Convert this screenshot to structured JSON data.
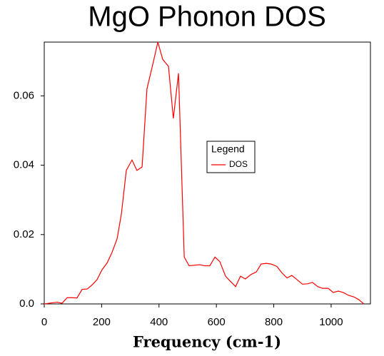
{
  "chart_data": {
    "type": "line",
    "title": "MgO Phonon DOS",
    "xlabel": "Frequency (cm-1)",
    "x": [
      0,
      25,
      45,
      62,
      80,
      97,
      114,
      132,
      150,
      167,
      184,
      201,
      219,
      236,
      254,
      269,
      286,
      306,
      323,
      341,
      358,
      378,
      396,
      413,
      433,
      450,
      468,
      488,
      505,
      542,
      560,
      577,
      595,
      612,
      632,
      649,
      667,
      684,
      701,
      721,
      739,
      756,
      774,
      791,
      811,
      828,
      846,
      863,
      881,
      900,
      918,
      935,
      953,
      970,
      990,
      1007,
      1025,
      1042,
      1060,
      1080,
      1097,
      1114
    ],
    "series": [
      {
        "name": "DOS",
        "color": "#ff0000",
        "values": [
          0,
          0.0003,
          0.0005,
          0.0002,
          0.0018,
          0.0018,
          0.0017,
          0.0042,
          0.0043,
          0.0055,
          0.007,
          0.0098,
          0.0118,
          0.0148,
          0.0188,
          0.026,
          0.0385,
          0.0415,
          0.0385,
          0.0395,
          0.062,
          0.069,
          0.0755,
          0.0705,
          0.0685,
          0.0535,
          0.0665,
          0.0135,
          0.011,
          0.0113,
          0.011,
          0.011,
          0.0135,
          0.0122,
          0.008,
          0.0065,
          0.005,
          0.008,
          0.0072,
          0.0085,
          0.0092,
          0.0115,
          0.0117,
          0.0115,
          0.0108,
          0.009,
          0.0075,
          0.0082,
          0.007,
          0.0057,
          0.0058,
          0.0062,
          0.005,
          0.0045,
          0.0045,
          0.0033,
          0.0037,
          0.0033,
          0.0025,
          0.002,
          0.0012,
          0
        ]
      }
    ],
    "xlim": [
      0,
      1137
    ],
    "xticks": [
      0,
      200,
      400,
      600,
      800,
      1000
    ],
    "ylim": [
      0,
      0.0755
    ],
    "yticks": [
      {
        "value": 0,
        "label": "0.0"
      },
      0.02,
      0.04,
      0.06
    ],
    "legend_title": "Legend",
    "legend": "center-right"
  }
}
